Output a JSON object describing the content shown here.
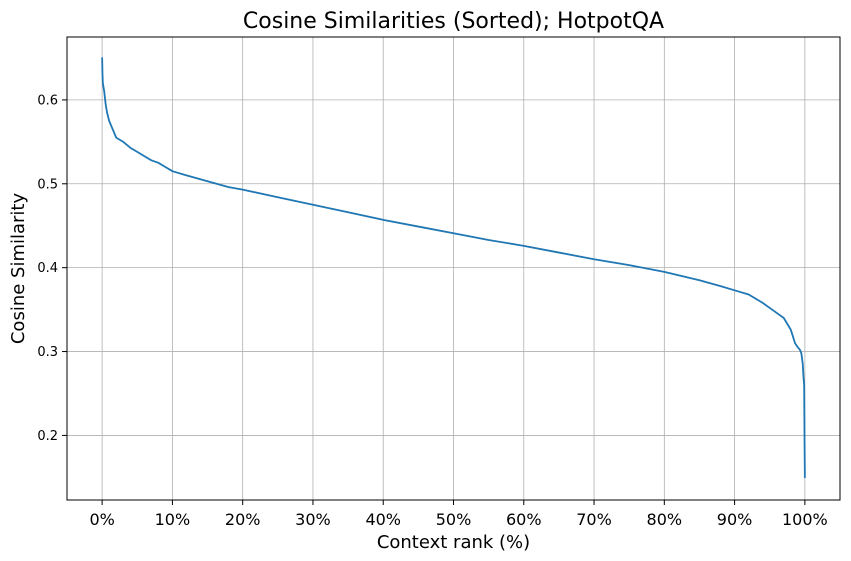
{
  "chart_data": {
    "type": "line",
    "title": "Cosine Similarities (Sorted); HotpotQA",
    "xlabel": "Context rank (%)",
    "ylabel": "Cosine Similarity",
    "xlim": [
      -5,
      105
    ],
    "ylim": [
      0.123,
      0.675
    ],
    "x_ticks": [
      0,
      10,
      20,
      30,
      40,
      50,
      60,
      70,
      80,
      90,
      100
    ],
    "x_tick_labels": [
      "0%",
      "10%",
      "20%",
      "30%",
      "40%",
      "50%",
      "60%",
      "70%",
      "80%",
      "90%",
      "100%"
    ],
    "y_ticks": [
      0.2,
      0.3,
      0.4,
      0.5,
      0.6
    ],
    "y_tick_labels": [
      "0.2",
      "0.3",
      "0.4",
      "0.5",
      "0.6"
    ],
    "grid": true,
    "legend": "none",
    "series": [
      {
        "color": "#1f77b4",
        "x": [
          0,
          0.05,
          0.1,
          0.2,
          0.3,
          0.5,
          0.7,
          1,
          1.5,
          2,
          3,
          4,
          5,
          6,
          7,
          8,
          9,
          10,
          12,
          15,
          18,
          20,
          25,
          30,
          35,
          40,
          45,
          50,
          55,
          60,
          65,
          70,
          75,
          80,
          85,
          88,
          90,
          92,
          94,
          95,
          96,
          97,
          97.5,
          98,
          98.3,
          98.6,
          99,
          99.3,
          99.5,
          99.7,
          99.8,
          99.9,
          99.95,
          100
        ],
        "y": [
          0.65,
          0.63,
          0.62,
          0.615,
          0.61,
          0.595,
          0.585,
          0.575,
          0.565,
          0.555,
          0.55,
          0.543,
          0.538,
          0.533,
          0.528,
          0.525,
          0.52,
          0.515,
          0.51,
          0.503,
          0.496,
          0.493,
          0.484,
          0.475,
          0.466,
          0.457,
          0.449,
          0.441,
          0.433,
          0.426,
          0.418,
          0.41,
          0.403,
          0.395,
          0.385,
          0.378,
          0.373,
          0.368,
          0.358,
          0.352,
          0.346,
          0.34,
          0.333,
          0.326,
          0.318,
          0.31,
          0.305,
          0.302,
          0.298,
          0.285,
          0.27,
          0.26,
          0.2,
          0.15
        ]
      }
    ]
  }
}
